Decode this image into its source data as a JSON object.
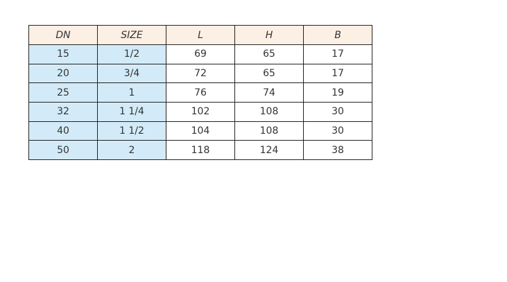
{
  "table": {
    "headers": [
      "DN",
      "SIZE",
      "L",
      "H",
      "B"
    ],
    "rows": [
      [
        "15",
        "1/2",
        "69",
        "65",
        "17"
      ],
      [
        "20",
        "3/4",
        "72",
        "65",
        "17"
      ],
      [
        "25",
        "1",
        "76",
        "74",
        "19"
      ],
      [
        "32",
        "1 1/4",
        "102",
        "108",
        "30"
      ],
      [
        "40",
        "1 1/2",
        "104",
        "108",
        "30"
      ],
      [
        "50",
        "2",
        "118",
        "124",
        "38"
      ]
    ]
  },
  "colors": {
    "header_bg": "#fcefe3",
    "key_column_bg": "#d3ebf8",
    "border": "#222222"
  }
}
